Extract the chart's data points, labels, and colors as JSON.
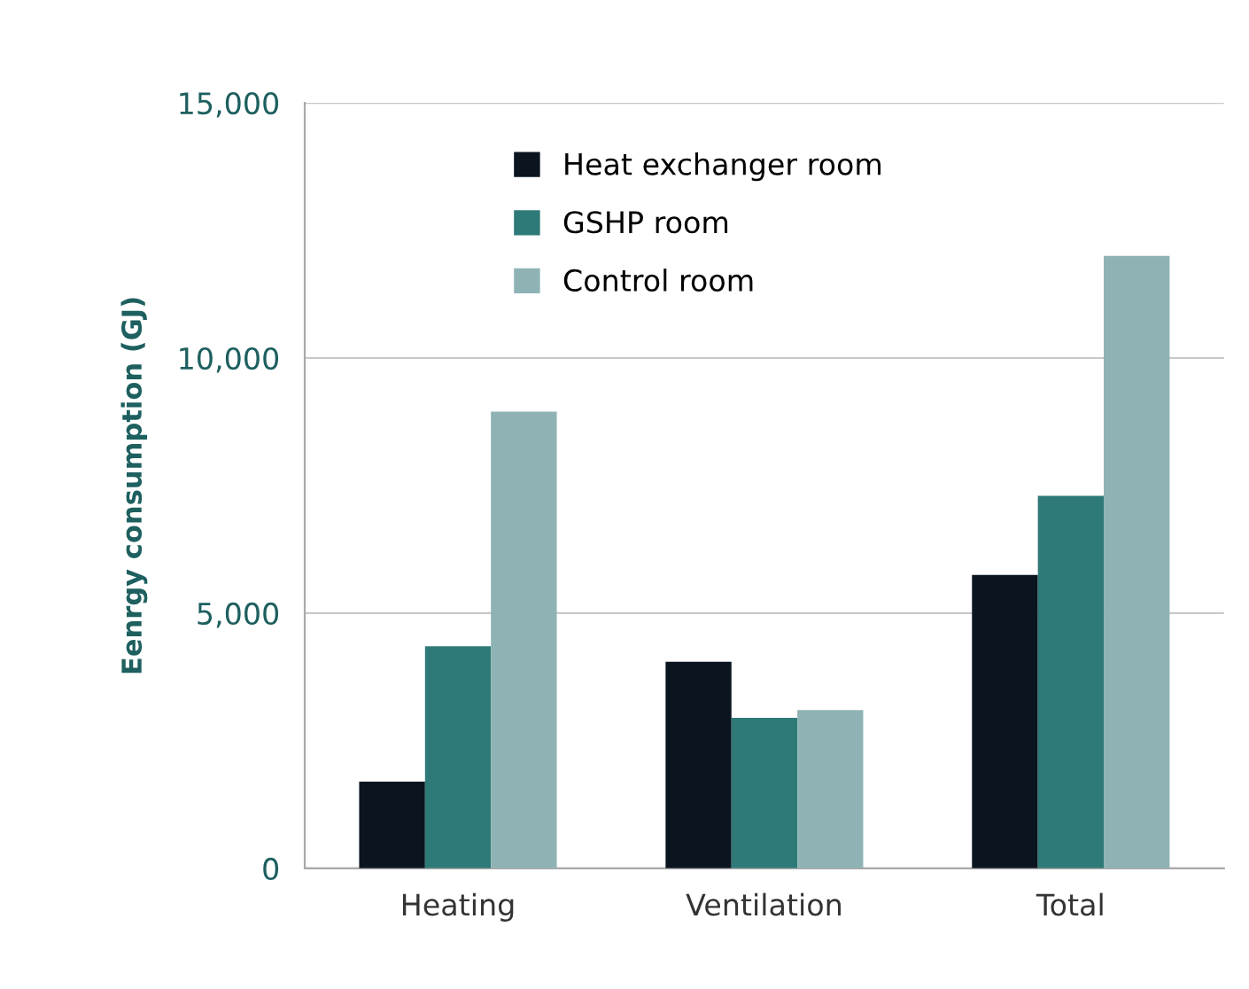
{
  "chart_data": {
    "type": "bar",
    "ylabel": "Eenrgy consumption (GJ)",
    "categories": [
      "Heating",
      "Ventilation",
      "Total"
    ],
    "series": [
      {
        "name": "Heat exchanger room",
        "color": "#0a1520",
        "values": [
          1700,
          4050,
          5750
        ]
      },
      {
        "name": "GSHP room",
        "color": "#2e7a78",
        "values": [
          4350,
          2950,
          7300
        ]
      },
      {
        "name": "Control room",
        "color": "#8fb3b5",
        "values": [
          8950,
          3100,
          12000
        ]
      }
    ],
    "ylim": [
      0,
      15000
    ],
    "yticks": [
      {
        "value": 0,
        "label": "0"
      },
      {
        "value": 5000,
        "label": "5,000"
      },
      {
        "value": 10000,
        "label": "10,000"
      },
      {
        "value": 15000,
        "label": "15,000"
      }
    ],
    "grid": "y",
    "legend": "top left"
  }
}
